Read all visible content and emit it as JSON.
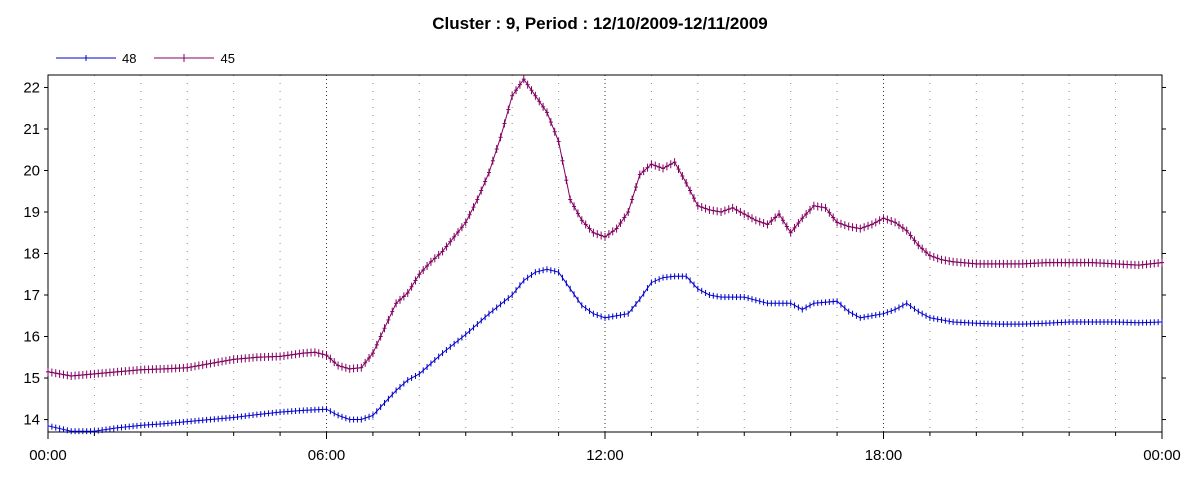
{
  "chart_data": {
    "type": "line",
    "title": "Cluster : 9, Period : 12/10/2009-12/11/2009",
    "xlabel": "",
    "ylabel": "",
    "xlim_hours": [
      0,
      24
    ],
    "ylim": [
      13.7,
      22.3
    ],
    "x_tick_labels": [
      "00:00",
      "06:00",
      "12:00",
      "18:00",
      "00:00"
    ],
    "x_tick_hours": [
      0,
      6,
      12,
      18,
      24
    ],
    "y_ticks": [
      14,
      15,
      16,
      17,
      18,
      19,
      20,
      21,
      22
    ],
    "grid": true,
    "legend_position": "top-left",
    "series": [
      {
        "name": "48",
        "color": "#0000cc",
        "marker": "tick",
        "x_hours": [
          0,
          0.5,
          1,
          1.5,
          2,
          2.5,
          3,
          3.5,
          4,
          4.5,
          5,
          5.5,
          6,
          6.25,
          6.5,
          6.75,
          7,
          7.25,
          7.5,
          7.75,
          8,
          8.5,
          9,
          9.5,
          10,
          10.25,
          10.5,
          10.75,
          11,
          11.25,
          11.5,
          11.75,
          12,
          12.5,
          12.75,
          13,
          13.25,
          13.5,
          13.75,
          14,
          14.25,
          14.5,
          15,
          15.5,
          16,
          16.25,
          16.5,
          17,
          17.25,
          17.5,
          17.75,
          18,
          18.25,
          18.5,
          18.75,
          19,
          19.5,
          20,
          20.5,
          21,
          21.5,
          22,
          22.5,
          23,
          23.5,
          24
        ],
        "values": [
          13.85,
          13.72,
          13.72,
          13.8,
          13.86,
          13.9,
          13.95,
          14.0,
          14.05,
          14.12,
          14.18,
          14.22,
          14.25,
          14.1,
          14.0,
          14.0,
          14.1,
          14.4,
          14.7,
          14.95,
          15.1,
          15.6,
          16.05,
          16.55,
          17.0,
          17.35,
          17.55,
          17.62,
          17.55,
          17.15,
          16.75,
          16.55,
          16.45,
          16.55,
          16.9,
          17.3,
          17.42,
          17.45,
          17.45,
          17.15,
          17.0,
          16.95,
          16.95,
          16.8,
          16.8,
          16.65,
          16.8,
          16.85,
          16.6,
          16.45,
          16.5,
          16.55,
          16.65,
          16.8,
          16.6,
          16.45,
          16.35,
          16.32,
          16.3,
          16.3,
          16.32,
          16.35,
          16.35,
          16.35,
          16.33,
          16.35
        ]
      },
      {
        "name": "45",
        "color": "#800060",
        "marker": "plus",
        "x_hours": [
          0,
          0.5,
          1,
          1.5,
          2,
          2.5,
          3,
          3.5,
          4,
          4.5,
          5,
          5.5,
          5.75,
          6,
          6.25,
          6.5,
          6.75,
          7,
          7.25,
          7.5,
          7.75,
          8,
          8.25,
          8.5,
          8.75,
          9,
          9.25,
          9.5,
          9.75,
          10,
          10.25,
          10.5,
          10.75,
          11,
          11.25,
          11.5,
          11.75,
          12,
          12.25,
          12.5,
          12.75,
          13,
          13.25,
          13.5,
          13.75,
          14,
          14.25,
          14.5,
          14.75,
          15,
          15.25,
          15.5,
          15.75,
          16,
          16.25,
          16.5,
          16.75,
          17,
          17.25,
          17.5,
          17.75,
          18,
          18.25,
          18.5,
          18.75,
          19,
          19.25,
          19.5,
          20,
          20.5,
          21,
          21.5,
          22,
          22.5,
          23,
          23.5,
          24
        ],
        "values": [
          15.15,
          15.05,
          15.1,
          15.15,
          15.2,
          15.22,
          15.25,
          15.35,
          15.45,
          15.5,
          15.52,
          15.6,
          15.62,
          15.55,
          15.3,
          15.22,
          15.25,
          15.6,
          16.2,
          16.8,
          17.05,
          17.5,
          17.8,
          18.05,
          18.4,
          18.75,
          19.3,
          19.95,
          20.8,
          21.8,
          22.2,
          21.8,
          21.4,
          20.7,
          19.3,
          18.8,
          18.5,
          18.4,
          18.6,
          19.0,
          19.9,
          20.15,
          20.05,
          20.2,
          19.7,
          19.15,
          19.05,
          19.0,
          19.1,
          18.95,
          18.8,
          18.7,
          18.95,
          18.5,
          18.85,
          19.15,
          19.1,
          18.75,
          18.65,
          18.6,
          18.7,
          18.85,
          18.75,
          18.55,
          18.2,
          17.95,
          17.85,
          17.8,
          17.75,
          17.75,
          17.75,
          17.78,
          17.78,
          17.78,
          17.75,
          17.72,
          17.78
        ]
      }
    ]
  }
}
